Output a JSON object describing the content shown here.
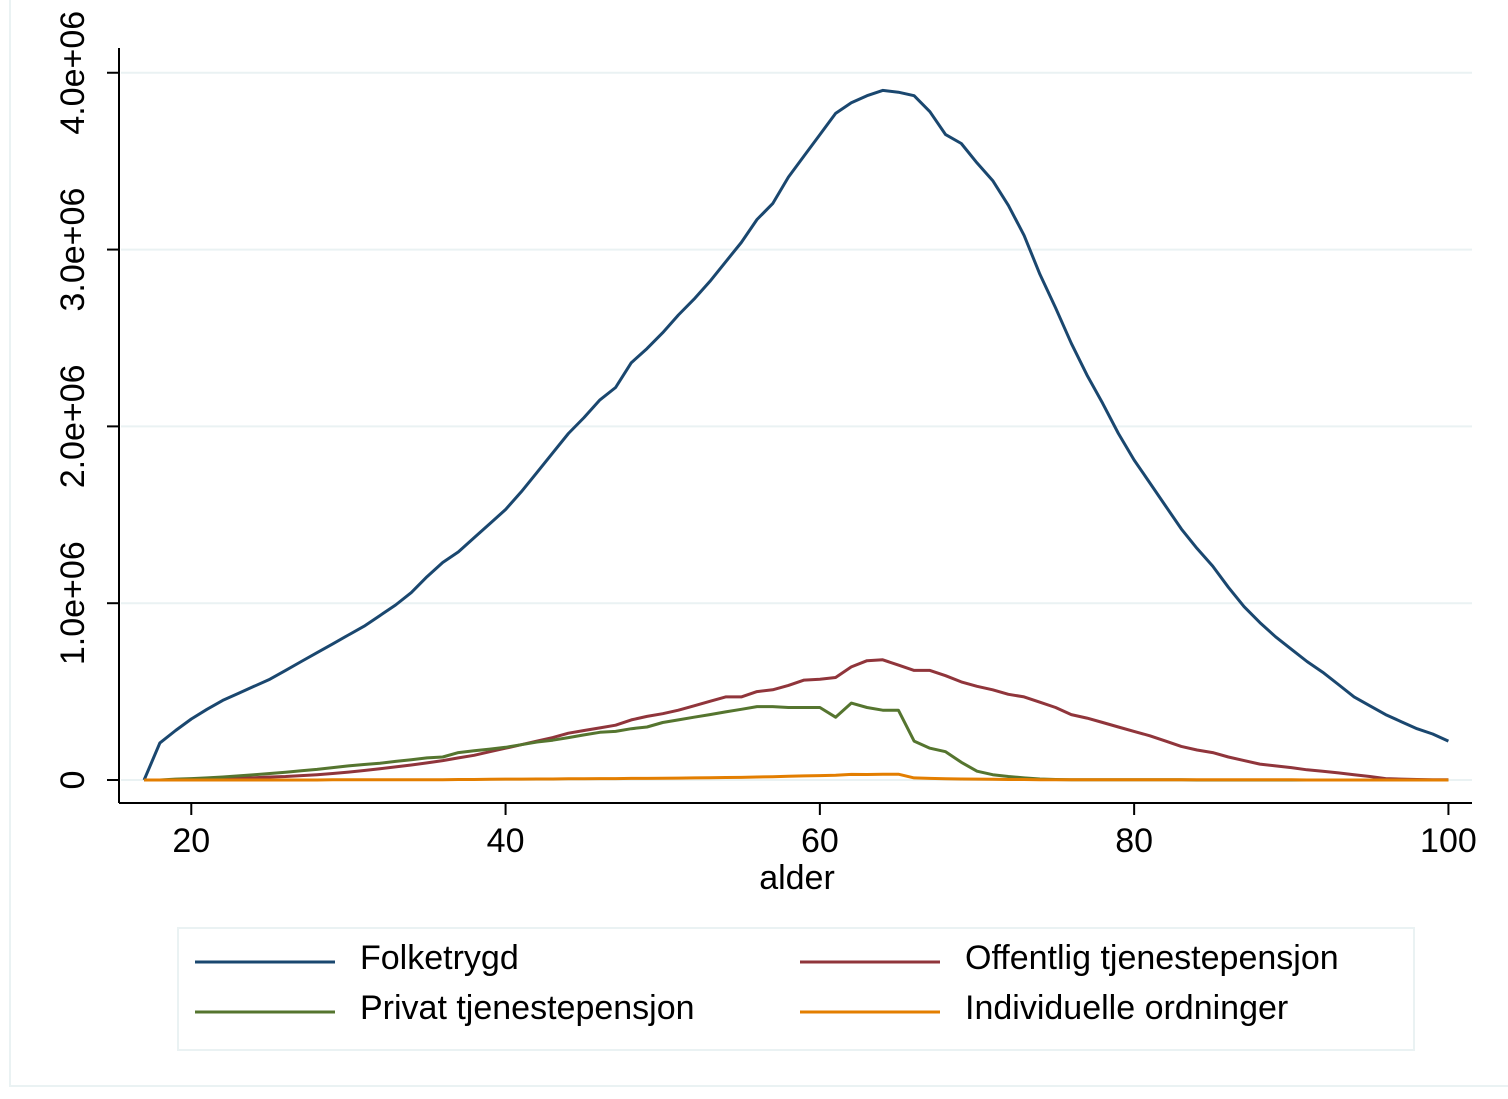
{
  "chart_data": {
    "type": "line",
    "x_label": "alder",
    "x": [
      17,
      18,
      19,
      20,
      21,
      22,
      23,
      24,
      25,
      26,
      27,
      28,
      29,
      30,
      31,
      32,
      33,
      34,
      35,
      36,
      37,
      38,
      39,
      40,
      41,
      42,
      43,
      44,
      45,
      46,
      47,
      48,
      49,
      50,
      51,
      52,
      53,
      54,
      55,
      56,
      57,
      58,
      59,
      60,
      61,
      62,
      63,
      64,
      65,
      66,
      67,
      68,
      69,
      70,
      71,
      72,
      73,
      74,
      75,
      76,
      77,
      78,
      79,
      80,
      81,
      82,
      83,
      84,
      85,
      86,
      87,
      88,
      89,
      90,
      91,
      92,
      93,
      94,
      95,
      96,
      97,
      98,
      99,
      100
    ],
    "series": [
      {
        "name": "Folketrygd",
        "color": "#1a476f",
        "values": [
          0,
          210000,
          280000,
          345000,
          400000,
          450000,
          490000,
          530000,
          570000,
          620000,
          670000,
          720000,
          770000,
          820000,
          870000,
          930000,
          990000,
          1060000,
          1150000,
          1230000,
          1290000,
          1370000,
          1450000,
          1530000,
          1630000,
          1740000,
          1850000,
          1960000,
          2050000,
          2150000,
          2220000,
          2360000,
          2440000,
          2530000,
          2630000,
          2720000,
          2820000,
          2930000,
          3040000,
          3170000,
          3260000,
          3410000,
          3530000,
          3650000,
          3770000,
          3830000,
          3870000,
          3900000,
          3890000,
          3870000,
          3780000,
          3650000,
          3600000,
          3490000,
          3390000,
          3250000,
          3080000,
          2860000,
          2670000,
          2470000,
          2290000,
          2130000,
          1960000,
          1810000,
          1680000,
          1550000,
          1420000,
          1310000,
          1210000,
          1090000,
          980000,
          890000,
          810000,
          740000,
          670000,
          610000,
          540000,
          470000,
          420000,
          370000,
          330000,
          290000,
          260000,
          220000
        ]
      },
      {
        "name": "Offentlig tjenestepensjon",
        "color": "#90353b",
        "values": [
          0,
          0,
          0,
          0,
          5000,
          7000,
          10000,
          13000,
          17000,
          20000,
          25000,
          30000,
          37000,
          45000,
          54000,
          64000,
          74000,
          85000,
          97000,
          110000,
          125000,
          140000,
          160000,
          180000,
          200000,
          220000,
          240000,
          265000,
          280000,
          295000,
          310000,
          340000,
          360000,
          375000,
          395000,
          420000,
          445000,
          470000,
          470000,
          500000,
          510000,
          535000,
          565000,
          570000,
          580000,
          640000,
          675000,
          680000,
          650000,
          620000,
          620000,
          590000,
          555000,
          530000,
          510000,
          485000,
          470000,
          440000,
          410000,
          370000,
          350000,
          325000,
          300000,
          275000,
          250000,
          220000,
          190000,
          170000,
          155000,
          130000,
          110000,
          90000,
          80000,
          70000,
          58000,
          50000,
          40000,
          30000,
          20000,
          8000,
          5000,
          3000,
          2000,
          1000
        ]
      },
      {
        "name": "Privat tjenestepensjon",
        "color": "#55752f",
        "values": [
          0,
          0,
          5000,
          8000,
          12000,
          17000,
          23000,
          30000,
          37000,
          44000,
          52000,
          60000,
          70000,
          80000,
          88000,
          95000,
          105000,
          115000,
          125000,
          130000,
          155000,
          165000,
          175000,
          185000,
          200000,
          215000,
          225000,
          240000,
          255000,
          270000,
          275000,
          290000,
          300000,
          325000,
          340000,
          355000,
          370000,
          385000,
          400000,
          415000,
          415000,
          410000,
          410000,
          410000,
          355000,
          435000,
          410000,
          395000,
          395000,
          220000,
          180000,
          160000,
          100000,
          50000,
          30000,
          20000,
          12000,
          6000,
          3000,
          2000,
          2000,
          2000,
          1000,
          1000,
          1000,
          1000,
          1000,
          0,
          0,
          0,
          0,
          0,
          0,
          0,
          0,
          0,
          0,
          0,
          0,
          0,
          0,
          0,
          0,
          0
        ]
      },
      {
        "name": "Individuelle ordninger",
        "color": "#e37e00",
        "values": [
          0,
          0,
          0,
          0,
          0,
          0,
          0,
          0,
          0,
          0,
          0,
          0,
          1000,
          1000,
          1000,
          1000,
          1000,
          2000,
          2000,
          2000,
          3000,
          3000,
          4000,
          5000,
          5000,
          6000,
          6000,
          7000,
          7000,
          8000,
          8000,
          9000,
          9000,
          10000,
          11000,
          12000,
          13000,
          14000,
          15000,
          17000,
          19000,
          21000,
          23000,
          25000,
          27000,
          32000,
          31000,
          33000,
          33000,
          12000,
          9000,
          7000,
          6000,
          5000,
          4000,
          3000,
          3000,
          2000,
          2000,
          2000,
          2000,
          2000,
          2000,
          2000,
          1000,
          1000,
          1000,
          1000,
          1000,
          1000,
          1000,
          1000,
          1000,
          1000,
          0,
          0,
          0,
          0,
          0,
          0,
          0,
          0,
          0,
          0
        ]
      }
    ],
    "xlim": [
      15.4,
      101.5
    ],
    "ylim": [
      -130000,
      4140000
    ],
    "xticks": [
      20,
      40,
      60,
      80,
      100
    ],
    "yticks": [
      0,
      {
        "value": 1000000,
        "label": "1.0e+06"
      },
      {
        "value": 2000000,
        "label": "2.0e+06"
      },
      {
        "value": 3000000,
        "label": "3.0e+06"
      },
      {
        "value": 4000000,
        "label": "4.0e+06"
      }
    ],
    "grid": true,
    "legend": "bottom"
  }
}
